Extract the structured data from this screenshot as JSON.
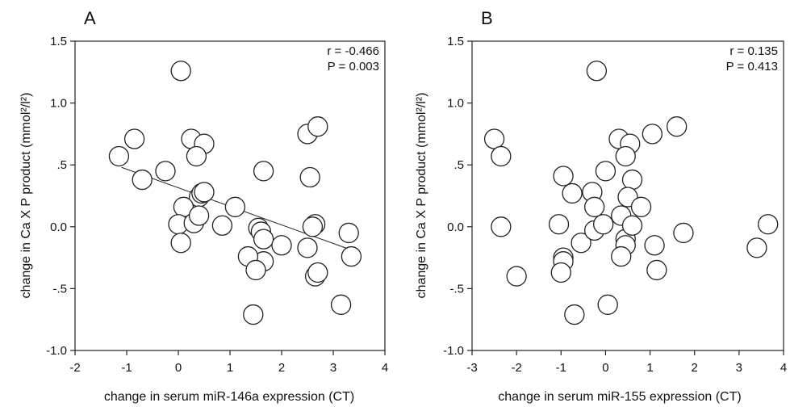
{
  "chart_data": [
    {
      "type": "scatter",
      "panel_letter": "A",
      "xlabel": "change in serum miR-146a expression (CT)",
      "ylabel": "change in Ca X P product (mmol²/l²)",
      "xlim": [
        -2,
        4
      ],
      "ylim": [
        -1.0,
        1.5
      ],
      "xticks": [
        -2,
        -1,
        0,
        1,
        2,
        3,
        4
      ],
      "xtick_labels": [
        "-2",
        "-1",
        "0",
        "1",
        "2",
        "3",
        "4"
      ],
      "yticks": [
        -1.0,
        -0.5,
        0.0,
        0.5,
        1.0,
        1.5
      ],
      "ytick_labels": [
        "-1.0",
        "-.5",
        "0.0",
        ".5",
        "1.0",
        "1.5"
      ],
      "annotations": [
        "r = -0.466",
        "P = 0.003"
      ],
      "regression_line": {
        "x": [
          -1.1,
          3.3
        ],
        "y": [
          0.48,
          -0.18
        ]
      },
      "points": [
        {
          "x": 0.05,
          "y": 1.26
        },
        {
          "x": -1.15,
          "y": 0.57
        },
        {
          "x": -0.85,
          "y": 0.71
        },
        {
          "x": -0.7,
          "y": 0.38
        },
        {
          "x": -0.25,
          "y": 0.45
        },
        {
          "x": 0.25,
          "y": 0.71
        },
        {
          "x": 0.5,
          "y": 0.67
        },
        {
          "x": 0.35,
          "y": 0.57
        },
        {
          "x": 0.4,
          "y": 0.24
        },
        {
          "x": 0.45,
          "y": 0.27
        },
        {
          "x": 0.5,
          "y": 0.28
        },
        {
          "x": 0.1,
          "y": 0.16
        },
        {
          "x": 0.0,
          "y": 0.02
        },
        {
          "x": 0.05,
          "y": -0.13
        },
        {
          "x": 0.3,
          "y": 0.03
        },
        {
          "x": 0.4,
          "y": 0.09
        },
        {
          "x": 0.85,
          "y": 0.01
        },
        {
          "x": 1.1,
          "y": 0.16
        },
        {
          "x": 1.65,
          "y": 0.45
        },
        {
          "x": 1.55,
          "y": -0.01
        },
        {
          "x": 1.6,
          "y": -0.04
        },
        {
          "x": 1.65,
          "y": -0.1
        },
        {
          "x": 1.65,
          "y": -0.28
        },
        {
          "x": 1.35,
          "y": -0.24
        },
        {
          "x": 1.5,
          "y": -0.35
        },
        {
          "x": 2.0,
          "y": -0.15
        },
        {
          "x": 1.45,
          "y": -0.71
        },
        {
          "x": 2.5,
          "y": 0.75
        },
        {
          "x": 2.7,
          "y": 0.81
        },
        {
          "x": 2.55,
          "y": 0.4
        },
        {
          "x": 2.5,
          "y": -0.17
        },
        {
          "x": 2.65,
          "y": 0.02
        },
        {
          "x": 2.6,
          "y": 0.0
        },
        {
          "x": 2.65,
          "y": -0.4
        },
        {
          "x": 2.7,
          "y": -0.37
        },
        {
          "x": 3.3,
          "y": -0.05
        },
        {
          "x": 3.35,
          "y": -0.24
        },
        {
          "x": 3.15,
          "y": -0.63
        }
      ]
    },
    {
      "type": "scatter",
      "panel_letter": "B",
      "xlabel": "change in serum miR-155 expression (CT)",
      "ylabel": "change in Ca X P product (mmol²/l²)",
      "xlim": [
        -3,
        4
      ],
      "ylim": [
        -1.0,
        1.5
      ],
      "xticks": [
        -3,
        -2,
        -1,
        0,
        1,
        2,
        3,
        4
      ],
      "xtick_labels": [
        "-3",
        "-2",
        "-1",
        "0",
        "1",
        "2",
        "3",
        "4"
      ],
      "yticks": [
        -1.0,
        -0.5,
        0.0,
        0.5,
        1.0,
        1.5
      ],
      "ytick_labels": [
        "-1.0",
        "-.5",
        "0.0",
        ".5",
        "1.0",
        "1.5"
      ],
      "annotations": [
        "r = 0.135",
        "P = 0.413"
      ],
      "points": [
        {
          "x": -0.2,
          "y": 1.26
        },
        {
          "x": -2.5,
          "y": 0.71
        },
        {
          "x": -2.35,
          "y": 0.57
        },
        {
          "x": -2.35,
          "y": 0.0
        },
        {
          "x": -2.0,
          "y": -0.4
        },
        {
          "x": -0.95,
          "y": 0.41
        },
        {
          "x": -0.75,
          "y": 0.27
        },
        {
          "x": -1.05,
          "y": 0.02
        },
        {
          "x": -0.95,
          "y": -0.25
        },
        {
          "x": -0.95,
          "y": -0.28
        },
        {
          "x": -1.0,
          "y": -0.37
        },
        {
          "x": -0.7,
          "y": -0.71
        },
        {
          "x": -0.55,
          "y": -0.13
        },
        {
          "x": -0.3,
          "y": 0.28
        },
        {
          "x": -0.25,
          "y": 0.16
        },
        {
          "x": -0.25,
          "y": -0.03
        },
        {
          "x": -0.05,
          "y": 0.02
        },
        {
          "x": 0.0,
          "y": 0.45
        },
        {
          "x": 0.05,
          "y": -0.63
        },
        {
          "x": 0.3,
          "y": 0.71
        },
        {
          "x": 0.55,
          "y": 0.67
        },
        {
          "x": 0.45,
          "y": 0.57
        },
        {
          "x": 0.6,
          "y": 0.38
        },
        {
          "x": 0.5,
          "y": 0.24
        },
        {
          "x": 0.8,
          "y": 0.16
        },
        {
          "x": 0.35,
          "y": 0.09
        },
        {
          "x": 0.45,
          "y": -0.1
        },
        {
          "x": 0.6,
          "y": 0.01
        },
        {
          "x": 0.45,
          "y": -0.15
        },
        {
          "x": 0.35,
          "y": -0.24
        },
        {
          "x": 1.05,
          "y": 0.75
        },
        {
          "x": 1.6,
          "y": 0.81
        },
        {
          "x": 1.1,
          "y": -0.15
        },
        {
          "x": 1.15,
          "y": -0.35
        },
        {
          "x": 1.75,
          "y": -0.05
        },
        {
          "x": 3.4,
          "y": -0.17
        },
        {
          "x": 3.65,
          "y": 0.02
        }
      ]
    }
  ]
}
